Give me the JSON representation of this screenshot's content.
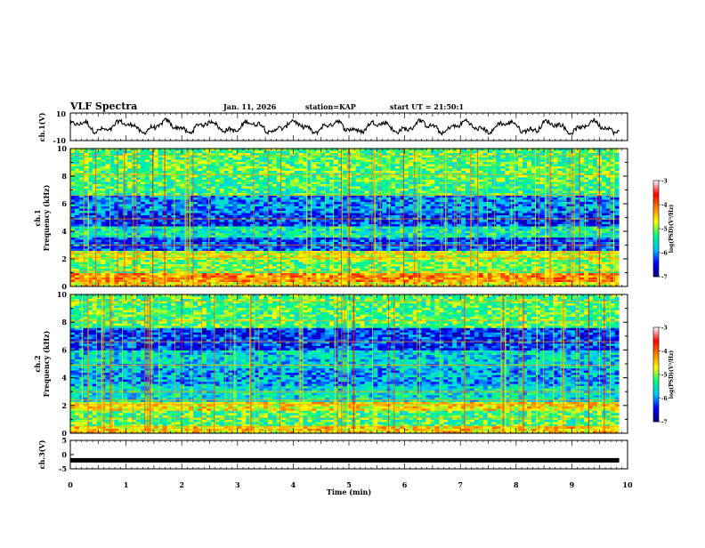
{
  "header": {
    "title": "VLF Spectra",
    "date": "Jan. 11, 2026",
    "station": "station=KAP",
    "start_ut": "start UT =  21:50:1"
  },
  "chart_data": [
    {
      "type": "line",
      "name": "ch.1 waveform",
      "ylabel": "ch.1(V)",
      "yticks": [
        "10",
        "-10"
      ],
      "ylim": [
        -10,
        10
      ],
      "x_range_min": [
        0,
        9.85
      ],
      "amplitude_note": "noisy waveform oscillating roughly between -5 and 5 V"
    },
    {
      "type": "heatmap",
      "name": "ch.1 spectrogram",
      "ylabel": "ch.1\nFrequency (kHz)",
      "ylabel_line1": "ch.1",
      "ylabel_line2": "Frequency (kHz)",
      "yticks": [
        "0",
        "2",
        "4",
        "6",
        "8",
        "10"
      ],
      "ylim": [
        0,
        10
      ],
      "xlim": [
        0,
        10
      ],
      "colorbar": {
        "label": "log(PSD)(V²/Hz)",
        "ticks": [
          "-3",
          "-4",
          "-5",
          "-6",
          "-7"
        ],
        "range": [
          -7,
          -3
        ]
      },
      "bands_khz_logpsd": [
        {
          "f0": 0,
          "f1": 0.4,
          "level": -4.6
        },
        {
          "f0": 0.4,
          "f1": 0.9,
          "level": -4.2
        },
        {
          "f0": 0.9,
          "f1": 2.0,
          "level": -5.1
        },
        {
          "f0": 2.0,
          "f1": 2.6,
          "level": -4.8
        },
        {
          "f0": 2.6,
          "f1": 3.6,
          "level": -6.2
        },
        {
          "f0": 3.6,
          "f1": 4.4,
          "level": -5.5
        },
        {
          "f0": 4.4,
          "f1": 5.4,
          "level": -6.3
        },
        {
          "f0": 5.4,
          "f1": 6.6,
          "level": -6.0
        },
        {
          "f0": 6.6,
          "f1": 7.5,
          "level": -5.3
        },
        {
          "f0": 7.5,
          "f1": 10,
          "level": -5.2
        }
      ]
    },
    {
      "type": "heatmap",
      "name": "ch.2 spectrogram",
      "ylabel": "ch.2\nFrequency (kHz)",
      "ylabel_line1": "ch.2",
      "ylabel_line2": "Frequency (kHz)",
      "yticks": [
        "0",
        "2",
        "4",
        "6",
        "8",
        "10"
      ],
      "ylim": [
        0,
        10
      ],
      "xlim": [
        0,
        10
      ],
      "colorbar": {
        "label": "log(PSD)(V²/Hz)",
        "ticks": [
          "-3",
          "-4",
          "-5",
          "-6",
          "-7"
        ],
        "range": [
          -7,
          -3
        ]
      },
      "bands_khz_logpsd": [
        {
          "f0": 0,
          "f1": 0.5,
          "level": -4.5
        },
        {
          "f0": 0.5,
          "f1": 1.6,
          "level": -5.2
        },
        {
          "f0": 1.6,
          "f1": 2.2,
          "level": -4.6
        },
        {
          "f0": 2.2,
          "f1": 3.4,
          "level": -5.6
        },
        {
          "f0": 3.4,
          "f1": 4.6,
          "level": -5.9
        },
        {
          "f0": 4.6,
          "f1": 6.0,
          "level": -5.7
        },
        {
          "f0": 6.0,
          "f1": 7.6,
          "level": -6.3
        },
        {
          "f0": 7.6,
          "f1": 10,
          "level": -5.2
        }
      ]
    },
    {
      "type": "line",
      "name": "ch.3 signal",
      "ylabel": "ch.3(V)",
      "yticks": [
        "5",
        "0",
        "-5"
      ],
      "ylim": [
        -5,
        5
      ],
      "level_v": -2,
      "x_range_min": [
        0,
        9.85
      ]
    }
  ],
  "x_axis": {
    "label": "Time (min)",
    "ticks": [
      "0",
      "1",
      "2",
      "3",
      "4",
      "5",
      "6",
      "7",
      "8",
      "9",
      "10"
    ],
    "xlim": [
      0,
      10
    ]
  },
  "colors": {
    "colormap": [
      "#000080",
      "#0000ff",
      "#00c8ff",
      "#00ff80",
      "#ffff00",
      "#ff8000",
      "#ff0000",
      "#ffffff"
    ]
  }
}
